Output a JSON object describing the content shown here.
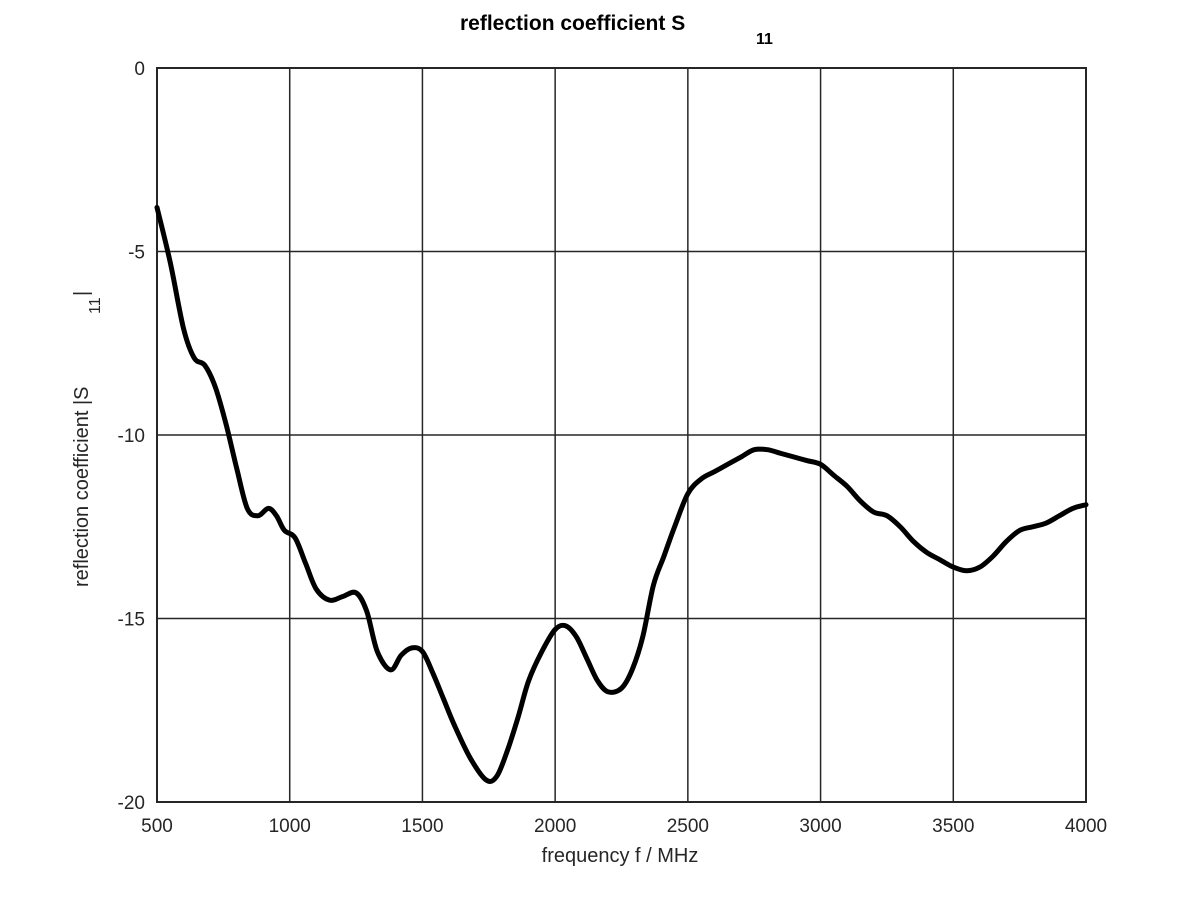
{
  "chart_data": {
    "type": "line",
    "title": "reflection coefficient S",
    "title_subscript": "11",
    "xlabel": "frequency f / MHz",
    "ylabel": "reflection coefficient |S",
    "ylabel_subscript": "11",
    "ylabel_suffix": "|",
    "xlim": [
      500,
      4000
    ],
    "ylim": [
      -20,
      0
    ],
    "xticks": [
      500,
      1000,
      1500,
      2000,
      2500,
      3000,
      3500,
      4000
    ],
    "yticks": [
      -20,
      -15,
      -10,
      -5,
      0
    ],
    "xtick_labels": [
      "500",
      "1000",
      "1500",
      "2000",
      "2500",
      "3000",
      "3500",
      "4000"
    ],
    "ytick_labels": [
      "-20",
      "-15",
      "-10",
      "-5",
      "0"
    ],
    "grid": true,
    "line_color": "#000000",
    "series": [
      {
        "x": [
          500,
          550,
          600,
          640,
          680,
          720,
          760,
          800,
          840,
          880,
          920,
          950,
          980,
          1020,
          1060,
          1100,
          1150,
          1200,
          1250,
          1290,
          1330,
          1380,
          1420,
          1460,
          1500,
          1540,
          1580,
          1620,
          1680,
          1740,
          1780,
          1820,
          1860,
          1900,
          1950,
          2000,
          2040,
          2080,
          2120,
          2160,
          2200,
          2250,
          2290,
          2330,
          2370,
          2410,
          2450,
          2500,
          2550,
          2600,
          2650,
          2700,
          2750,
          2800,
          2850,
          2900,
          2950,
          3000,
          3050,
          3100,
          3150,
          3200,
          3250,
          3300,
          3350,
          3400,
          3450,
          3500,
          3550,
          3600,
          3650,
          3700,
          3750,
          3800,
          3850,
          3900,
          3950,
          4000
        ],
        "y": [
          -3.8,
          -5.3,
          -7.1,
          -7.9,
          -8.1,
          -8.7,
          -9.7,
          -10.9,
          -12.0,
          -12.2,
          -12.0,
          -12.2,
          -12.6,
          -12.8,
          -13.5,
          -14.2,
          -14.5,
          -14.4,
          -14.3,
          -14.8,
          -15.9,
          -16.4,
          -16.0,
          -15.8,
          -15.9,
          -16.5,
          -17.2,
          -17.9,
          -18.8,
          -19.4,
          -19.3,
          -18.6,
          -17.7,
          -16.7,
          -15.9,
          -15.3,
          -15.2,
          -15.5,
          -16.1,
          -16.7,
          -17.0,
          -16.9,
          -16.4,
          -15.5,
          -14.1,
          -13.3,
          -12.5,
          -11.6,
          -11.2,
          -11.0,
          -10.8,
          -10.6,
          -10.4,
          -10.4,
          -10.5,
          -10.6,
          -10.7,
          -10.8,
          -11.1,
          -11.4,
          -11.8,
          -12.1,
          -12.2,
          -12.5,
          -12.9,
          -13.2,
          -13.4,
          -13.6,
          -13.7,
          -13.6,
          -13.3,
          -12.9,
          -12.6,
          -12.5,
          -12.4,
          -12.2,
          -12.0,
          -11.9
        ]
      }
    ]
  }
}
